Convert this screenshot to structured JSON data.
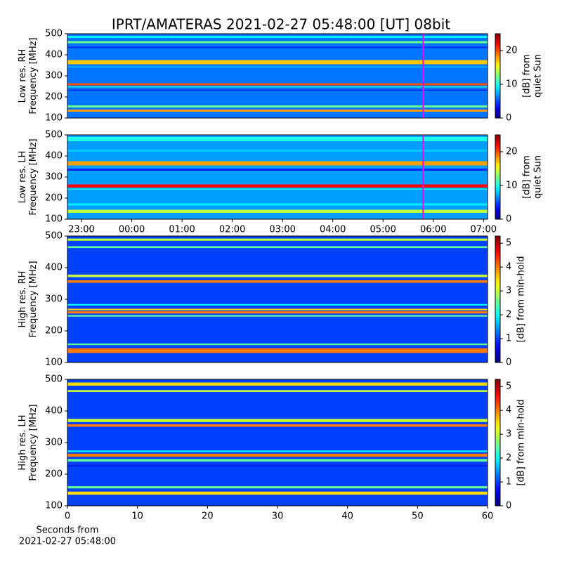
{
  "title": "IPRT/AMATERAS 2021-02-27 05:48:00 [UT]   08bit",
  "chart_data": [
    {
      "type": "heatmap",
      "ylabel": [
        "Low res. RH",
        "Frequency [MHz]"
      ],
      "ylim": [
        100,
        500
      ],
      "yticks": [
        100,
        200,
        300,
        400,
        500
      ],
      "xlim": [
        -1.28,
        7.08
      ],
      "colorbar": {
        "label": [
          "[dB] from",
          "quiet Sun"
        ],
        "lim": [
          0,
          25
        ],
        "ticks": [
          0,
          10,
          20
        ],
        "colormap": "jet"
      },
      "background": 6,
      "bands": [
        [
          480,
          490,
          9
        ],
        [
          455,
          465,
          12
        ],
        [
          432,
          438,
          4
        ],
        [
          355,
          375,
          17
        ],
        [
          340,
          345,
          8
        ],
        [
          255,
          265,
          20
        ],
        [
          245,
          250,
          10
        ],
        [
          230,
          235,
          4
        ],
        [
          150,
          160,
          12
        ],
        [
          130,
          140,
          18
        ]
      ],
      "marker": {
        "x": 5.8,
        "color": "#ff00ff"
      }
    },
    {
      "type": "heatmap",
      "ylabel": [
        "Low res. LH",
        "Frequency [MHz]"
      ],
      "ylim": [
        100,
        500
      ],
      "yticks": [
        100,
        200,
        300,
        400,
        500
      ],
      "xlim": [
        -1.28,
        7.08
      ],
      "xticks": [
        {
          "value": -1,
          "label": "23:00"
        },
        {
          "value": 0,
          "label": "00:00"
        },
        {
          "value": 1,
          "label": "01:00"
        },
        {
          "value": 2,
          "label": "02:00"
        },
        {
          "value": 3,
          "label": "03:00"
        },
        {
          "value": 4,
          "label": "04:00"
        },
        {
          "value": 5,
          "label": "05:00"
        },
        {
          "value": 6,
          "label": "06:00"
        },
        {
          "value": 7,
          "label": "07:00"
        }
      ],
      "colorbar": {
        "label": [
          "[dB] from",
          "quiet Sun"
        ],
        "lim": [
          0,
          25
        ],
        "ticks": [
          0,
          10,
          20
        ],
        "colormap": "jet"
      },
      "background": 7,
      "bands": [
        [
          470,
          490,
          10
        ],
        [
          420,
          430,
          8
        ],
        [
          355,
          375,
          18
        ],
        [
          330,
          340,
          4
        ],
        [
          250,
          265,
          22
        ],
        [
          240,
          245,
          9
        ],
        [
          165,
          175,
          9
        ],
        [
          130,
          145,
          14
        ]
      ],
      "marker": {
        "x": 5.8,
        "color": "#ff00ff"
      }
    },
    {
      "type": "heatmap",
      "ylabel": [
        "High res. RH",
        "Frequency [MHz]"
      ],
      "ylim": [
        100,
        500
      ],
      "yticks": [
        100,
        200,
        300,
        400,
        500
      ],
      "xlim": [
        0,
        60
      ],
      "colorbar": {
        "label": [
          "[dB] from min-hold"
        ],
        "lim": [
          0,
          5.3
        ],
        "ticks": [
          0,
          1,
          2,
          3,
          4,
          5
        ],
        "colormap": "jet"
      },
      "background": 1,
      "bands": [
        [
          485,
          492,
          3
        ],
        [
          462,
          468,
          2.5
        ],
        [
          370,
          378,
          3
        ],
        [
          352,
          360,
          4
        ],
        [
          280,
          285,
          2
        ],
        [
          265,
          270,
          3.5
        ],
        [
          255,
          262,
          4
        ],
        [
          245,
          250,
          2.5
        ],
        [
          155,
          160,
          2.5
        ],
        [
          130,
          145,
          4
        ]
      ]
    },
    {
      "type": "heatmap",
      "ylabel": [
        "High res. LH",
        "Frequency [MHz]"
      ],
      "ylim": [
        100,
        500
      ],
      "yticks": [
        100,
        200,
        300,
        400,
        500
      ],
      "xlim": [
        0,
        60
      ],
      "xticks": [
        0,
        10,
        20,
        30,
        40,
        50,
        60
      ],
      "xlabel": [
        "Seconds from",
        "2021-02-27 05:48:00"
      ],
      "colorbar": {
        "label": [
          "[dB] from min-hold"
        ],
        "lim": [
          0,
          5.3
        ],
        "ticks": [
          0,
          1,
          2,
          3,
          4,
          5
        ],
        "colormap": "jet"
      },
      "background": 1,
      "bands": [
        [
          480,
          490,
          3.5
        ],
        [
          460,
          466,
          3
        ],
        [
          365,
          375,
          3
        ],
        [
          350,
          358,
          4
        ],
        [
          270,
          275,
          2
        ],
        [
          255,
          265,
          4
        ],
        [
          240,
          248,
          2.5
        ],
        [
          225,
          228,
          0.5
        ],
        [
          155,
          162,
          2.5
        ],
        [
          135,
          145,
          3.5
        ]
      ]
    }
  ]
}
